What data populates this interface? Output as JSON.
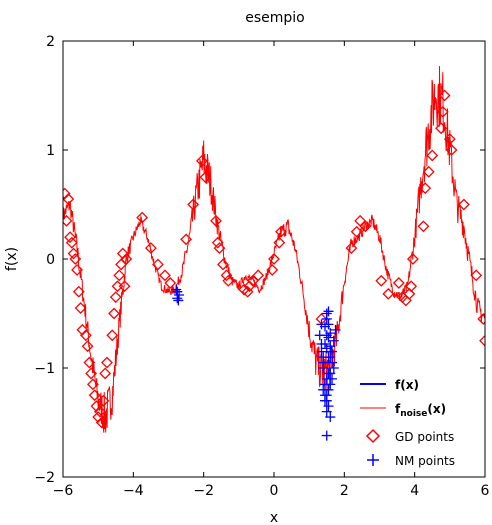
{
  "chart_data": {
    "type": "line",
    "title": "esempio",
    "xlabel": "x",
    "ylabel": "f(x)",
    "xlim": [
      -6,
      6
    ],
    "ylim": [
      -2,
      2
    ],
    "xticks": [
      -6,
      -4,
      -2,
      0,
      2,
      4,
      6
    ],
    "xtick_labels": [
      "−6",
      "−4",
      "−2",
      "0",
      "2",
      "4",
      "6"
    ],
    "yticks": [
      -2,
      -1,
      0,
      1,
      2
    ],
    "ytick_labels": [
      "−2",
      "−1",
      "0",
      "1",
      "2"
    ],
    "grid": false,
    "legend_position": "bottom-right",
    "colors": {
      "f": "#0000ff",
      "fnoise": "#ff0000",
      "gd": "#ff0000",
      "nm": "#0000ff"
    },
    "legend": {
      "f": "f(x)",
      "fnoise_base": "f",
      "fnoise_sub": "noise",
      "fnoise_tail": "(x)",
      "gd": "GD points",
      "nm": "NM points"
    },
    "series": [
      {
        "key": "fnoise",
        "kind": "noisy-line",
        "x": [
          -6.0,
          -5.8,
          -5.6,
          -5.4,
          -5.2,
          -5.0,
          -4.8,
          -4.6,
          -4.4,
          -4.2,
          -4.0,
          -3.8,
          -3.6,
          -3.4,
          -3.2,
          -3.0,
          -2.8,
          -2.6,
          -2.4,
          -2.2,
          -2.0,
          -1.8,
          -1.6,
          -1.4,
          -1.2,
          -1.0,
          -0.8,
          -0.6,
          -0.4,
          -0.2,
          0.0,
          0.2,
          0.4,
          0.6,
          0.8,
          1.0,
          1.2,
          1.4,
          1.6,
          1.8,
          2.0,
          2.2,
          2.4,
          2.6,
          2.8,
          3.0,
          3.2,
          3.4,
          3.6,
          3.8,
          4.0,
          4.2,
          4.4,
          4.6,
          4.8,
          5.0,
          5.2,
          5.4,
          5.6,
          5.8,
          6.0
        ],
        "y": [
          0.4,
          0.5,
          0.1,
          -0.4,
          -0.9,
          -1.3,
          -1.45,
          -1.25,
          -0.6,
          0.0,
          0.2,
          0.35,
          0.2,
          -0.05,
          -0.25,
          -0.3,
          -0.28,
          -0.1,
          0.2,
          0.6,
          0.9,
          0.7,
          0.3,
          0.0,
          -0.2,
          -0.25,
          -0.15,
          -0.2,
          -0.28,
          -0.15,
          0.05,
          0.25,
          0.3,
          0.1,
          -0.25,
          -0.65,
          -0.95,
          -1.05,
          -1.0,
          -0.7,
          -0.2,
          0.15,
          0.2,
          0.3,
          0.35,
          0.2,
          -0.1,
          -0.3,
          -0.35,
          -0.25,
          0.2,
          0.75,
          1.2,
          1.55,
          1.45,
          1.0,
          0.5,
          0.3,
          -0.1,
          -0.45,
          -0.55
        ],
        "amplitude": [
          0.08,
          0.08,
          0.1,
          0.1,
          0.12,
          0.15,
          0.22,
          0.18,
          0.12,
          0.08,
          0.05,
          0.05,
          0.05,
          0.04,
          0.04,
          0.04,
          0.04,
          0.06,
          0.1,
          0.18,
          0.25,
          0.18,
          0.1,
          0.06,
          0.05,
          0.04,
          0.04,
          0.04,
          0.04,
          0.04,
          0.05,
          0.07,
          0.08,
          0.06,
          0.06,
          0.12,
          0.18,
          0.2,
          0.2,
          0.15,
          0.08,
          0.06,
          0.05,
          0.05,
          0.06,
          0.06,
          0.05,
          0.05,
          0.05,
          0.05,
          0.1,
          0.2,
          0.28,
          0.32,
          0.3,
          0.22,
          0.15,
          0.12,
          0.1,
          0.1,
          0.1
        ]
      },
      {
        "key": "gd",
        "kind": "markers",
        "marker": "diamond",
        "x": [
          -5.95,
          -5.9,
          -5.85,
          -5.8,
          -5.75,
          -5.7,
          -5.65,
          -5.6,
          -5.55,
          -5.5,
          -5.45,
          -5.35,
          -5.3,
          -5.25,
          -5.2,
          -5.15,
          -5.1,
          -5.05,
          -5.0,
          -4.95,
          -4.9,
          -4.85,
          -4.8,
          -4.75,
          -4.6,
          -4.55,
          -4.5,
          -4.45,
          -4.4,
          -4.35,
          -4.3,
          -4.25,
          -4.2,
          -3.75,
          -3.5,
          -3.3,
          -3.1,
          -2.95,
          -2.5,
          -2.3,
          -2.05,
          -1.95,
          -1.65,
          -1.6,
          -1.55,
          -1.45,
          -1.35,
          -1.3,
          -0.85,
          -0.75,
          -0.7,
          -0.6,
          -0.45,
          -0.05,
          0.0,
          0.15,
          0.2,
          1.35,
          2.2,
          2.35,
          2.45,
          2.6,
          3.05,
          3.25,
          3.55,
          3.65,
          3.75,
          3.85,
          3.9,
          3.95,
          4.25,
          4.3,
          4.4,
          4.5,
          4.75,
          4.8,
          4.85,
          5.0,
          5.05,
          5.4,
          5.75,
          5.95,
          6.0
        ],
        "y": [
          0.6,
          0.35,
          0.55,
          0.2,
          0.15,
          0.05,
          0.0,
          -0.1,
          -0.3,
          -0.45,
          -0.65,
          -0.7,
          -0.8,
          -0.95,
          -1.05,
          -1.15,
          -1.25,
          -1.35,
          -1.45,
          -1.4,
          -1.5,
          -1.3,
          -1.05,
          -0.95,
          -0.7,
          -0.5,
          -0.35,
          -0.25,
          -0.15,
          -0.05,
          0.05,
          -0.25,
          0.0,
          0.38,
          0.1,
          -0.05,
          -0.15,
          -0.22,
          0.18,
          0.5,
          0.9,
          0.75,
          0.35,
          0.15,
          0.1,
          -0.05,
          -0.15,
          -0.2,
          -0.28,
          -0.3,
          -0.25,
          -0.2,
          -0.15,
          -0.1,
          0.0,
          0.15,
          0.25,
          -0.55,
          0.1,
          0.25,
          0.35,
          0.3,
          -0.2,
          -0.32,
          -0.22,
          -0.35,
          -0.38,
          -0.32,
          -0.25,
          0.0,
          0.3,
          0.65,
          0.8,
          0.95,
          1.2,
          1.35,
          1.5,
          1.1,
          1.0,
          0.5,
          -0.15,
          -0.55,
          -0.75
        ]
      },
      {
        "key": "nm",
        "kind": "markers",
        "marker": "plus",
        "x": [
          -2.75,
          -2.7,
          -2.75,
          -2.72,
          -2.78,
          1.3,
          1.35,
          1.4,
          1.45,
          1.5,
          1.55,
          1.6,
          1.65,
          1.7,
          1.75,
          1.5,
          1.55,
          1.45,
          1.6,
          1.4,
          1.5,
          1.55,
          1.6,
          1.45,
          1.35,
          1.65,
          1.5,
          1.55,
          1.7,
          1.4,
          1.5,
          1.6,
          1.45,
          1.55,
          1.5,
          1.4,
          1.65,
          1.55,
          1.5,
          1.6,
          1.45,
          1.5,
          1.55,
          1.35,
          1.6,
          1.5
        ],
        "y": [
          -0.3,
          -0.33,
          -0.36,
          -0.38,
          -0.28,
          -0.7,
          -0.85,
          -1.0,
          -1.15,
          -1.3,
          -1.2,
          -1.05,
          -0.95,
          -0.75,
          -0.65,
          -0.55,
          -0.48,
          -0.62,
          -0.8,
          -0.9,
          -1.1,
          -1.35,
          -1.45,
          -1.25,
          -0.6,
          -0.85,
          -0.7,
          -0.9,
          -1.0,
          -1.2,
          -1.4,
          -1.15,
          -0.78,
          -0.6,
          -0.5,
          -0.95,
          -1.1,
          -1.05,
          -0.82,
          -0.68,
          -1.3,
          -1.25,
          -0.72,
          -0.78,
          -0.9,
          -1.62
        ]
      }
    ]
  }
}
